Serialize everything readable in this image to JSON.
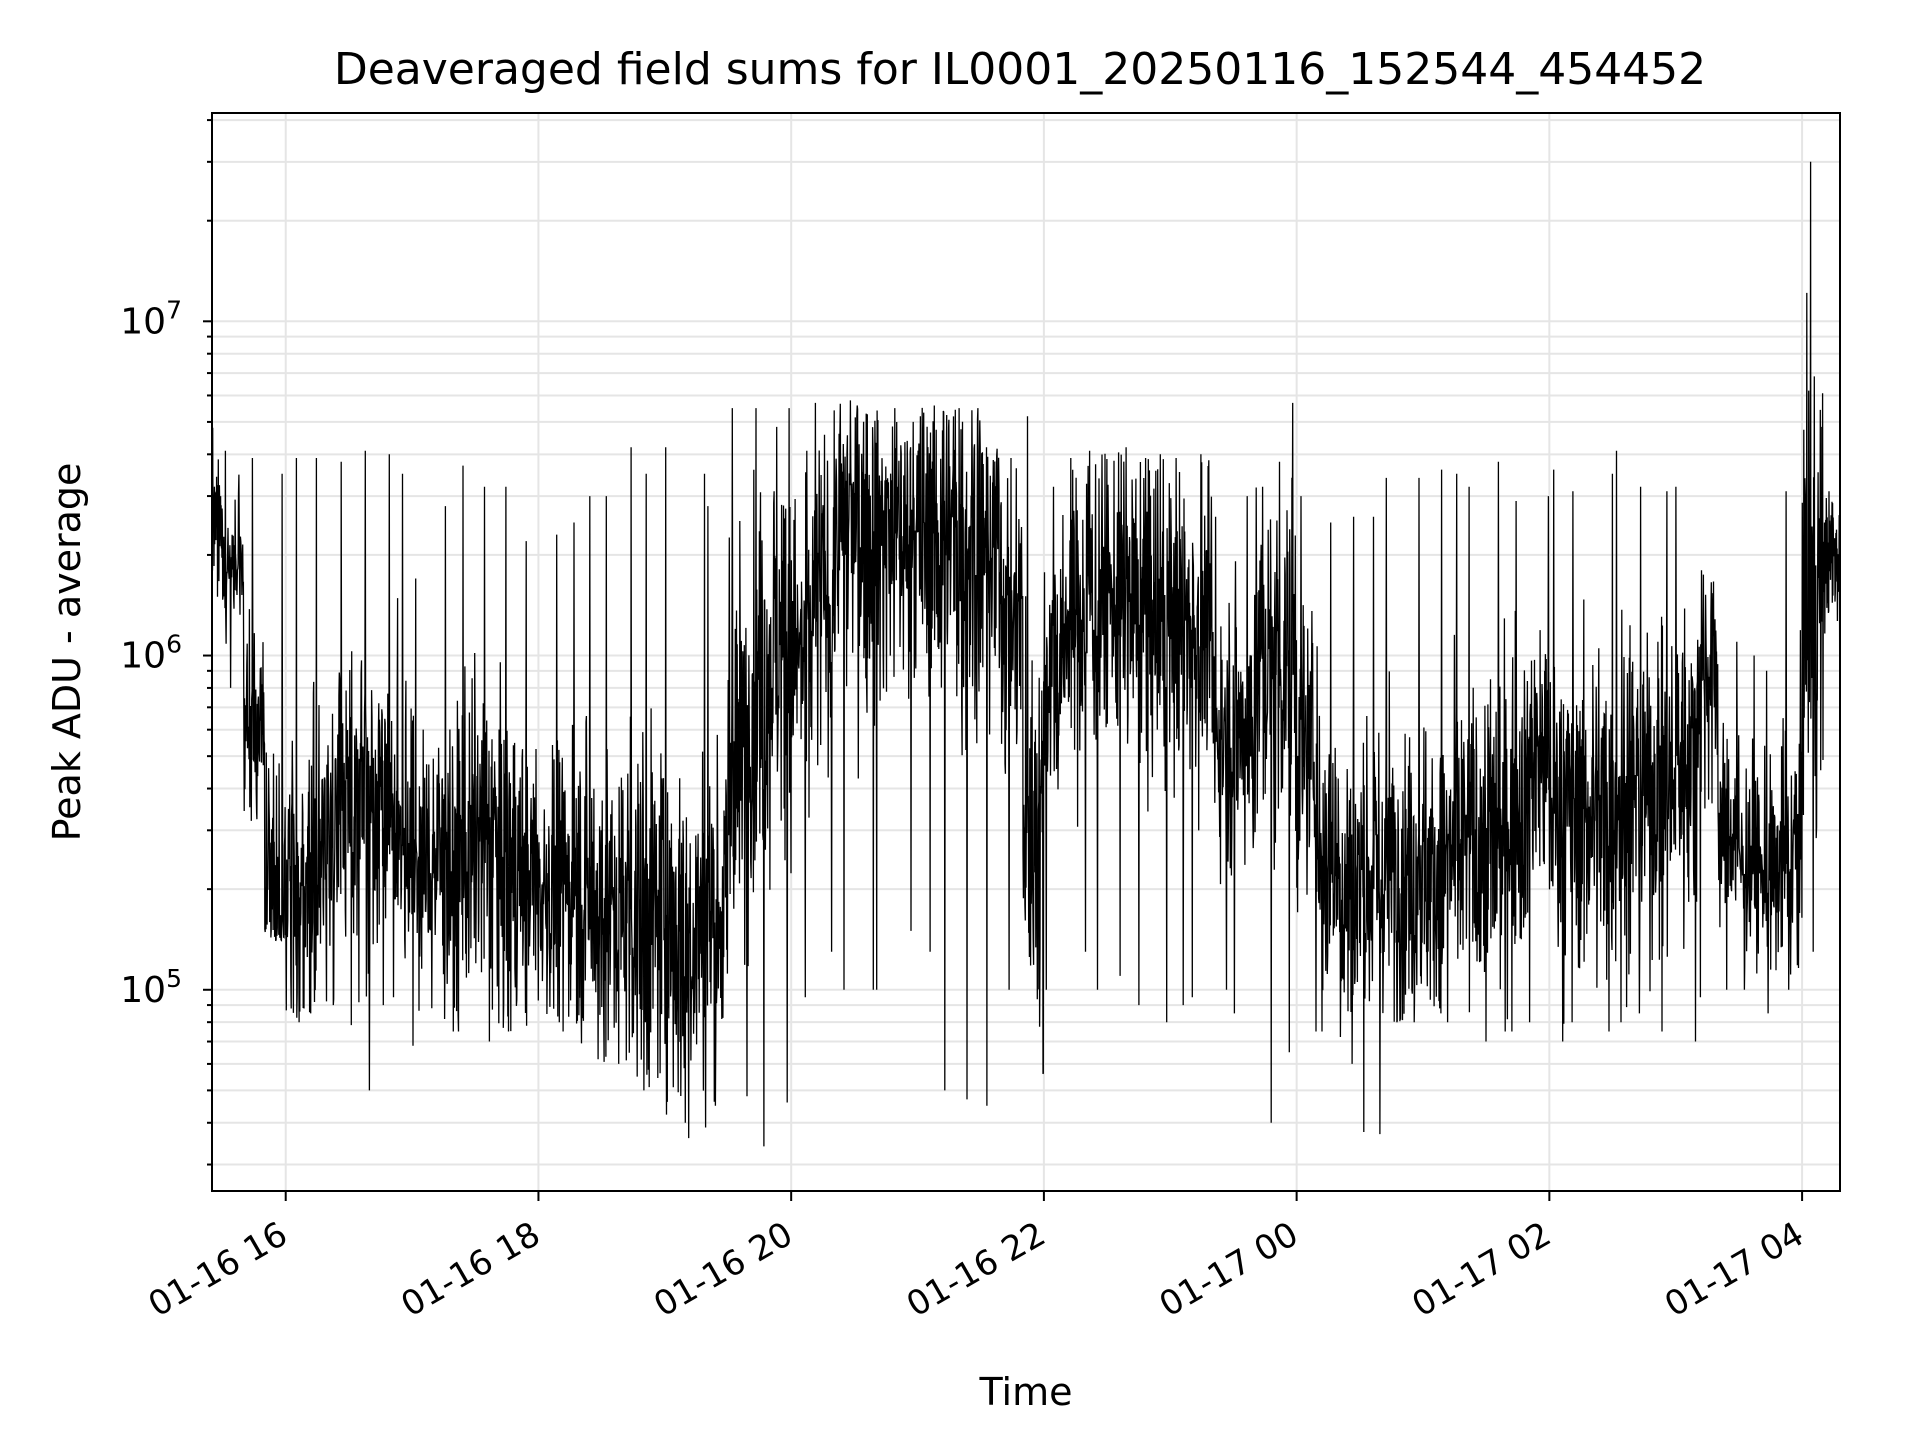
{
  "chart_data": {
    "type": "line",
    "title": "Deaveraged field sums for IL0001_20250116_152544_454452",
    "xlabel": "Time",
    "ylabel": "Peak ADU - average",
    "yscale": "log",
    "xlim": [
      "2025-01-16T15:25",
      "2025-01-17T04:18"
    ],
    "ylim": [
      25000,
      42000000
    ],
    "grid": true,
    "line_color": "#000000",
    "x_ticks": [
      {
        "t": "2025-01-16T16:00",
        "label": "01-16 16"
      },
      {
        "t": "2025-01-16T18:00",
        "label": "01-16 18"
      },
      {
        "t": "2025-01-16T20:00",
        "label": "01-16 20"
      },
      {
        "t": "2025-01-16T22:00",
        "label": "01-16 22"
      },
      {
        "t": "2025-01-17T00:00",
        "label": "01-17 00"
      },
      {
        "t": "2025-01-17T02:00",
        "label": "01-17 02"
      },
      {
        "t": "2025-01-17T04:00",
        "label": "01-17 04"
      }
    ],
    "y_ticks": [
      {
        "value": 100000,
        "base": "10",
        "exp": "5"
      },
      {
        "value": 1000000,
        "base": "10",
        "exp": "6"
      },
      {
        "value": 10000000,
        "base": "10",
        "exp": "7"
      }
    ],
    "series": [
      {
        "x": [
          "2025-01-16T15:25",
          "2025-01-16T15:35",
          "2025-01-16T15:45",
          "2025-01-16T15:55",
          "2025-01-16T16:05",
          "2025-01-16T16:15",
          "2025-01-16T16:25",
          "2025-01-16T16:35",
          "2025-01-16T16:45",
          "2025-01-16T16:55",
          "2025-01-16T17:05",
          "2025-01-16T17:15",
          "2025-01-16T17:25",
          "2025-01-16T17:35",
          "2025-01-16T17:45",
          "2025-01-16T17:55",
          "2025-01-16T18:05",
          "2025-01-16T18:15",
          "2025-01-16T18:25",
          "2025-01-16T18:35",
          "2025-01-16T18:45",
          "2025-01-16T18:55",
          "2025-01-16T19:05",
          "2025-01-16T19:15",
          "2025-01-16T19:25",
          "2025-01-16T19:35",
          "2025-01-16T19:45",
          "2025-01-16T19:55",
          "2025-01-16T20:05",
          "2025-01-16T20:15",
          "2025-01-16T20:25",
          "2025-01-16T20:35",
          "2025-01-16T20:45",
          "2025-01-16T20:55",
          "2025-01-16T21:05",
          "2025-01-16T21:15",
          "2025-01-16T21:25",
          "2025-01-16T21:35",
          "2025-01-16T21:45",
          "2025-01-16T21:55",
          "2025-01-16T22:05",
          "2025-01-16T22:15",
          "2025-01-16T22:25",
          "2025-01-16T22:35",
          "2025-01-16T22:45",
          "2025-01-16T22:55",
          "2025-01-16T23:05",
          "2025-01-16T23:15",
          "2025-01-16T23:25",
          "2025-01-16T23:35",
          "2025-01-16T23:45",
          "2025-01-16T23:55",
          "2025-01-17T00:05",
          "2025-01-17T00:15",
          "2025-01-17T00:25",
          "2025-01-17T00:35",
          "2025-01-17T00:45",
          "2025-01-17T00:55",
          "2025-01-17T01:05",
          "2025-01-17T01:15",
          "2025-01-17T01:25",
          "2025-01-17T01:35",
          "2025-01-17T01:45",
          "2025-01-17T01:55",
          "2025-01-17T02:05",
          "2025-01-17T02:15",
          "2025-01-17T02:25",
          "2025-01-17T02:35",
          "2025-01-17T02:45",
          "2025-01-17T02:55",
          "2025-01-17T03:05",
          "2025-01-17T03:15",
          "2025-01-17T03:25",
          "2025-01-17T03:35",
          "2025-01-17T03:45",
          "2025-01-17T03:55",
          "2025-01-17T04:05",
          "2025-01-17T04:15"
        ],
        "median": [
          2500000,
          1800000,
          600000,
          200000,
          190000,
          230000,
          350000,
          380000,
          400000,
          300000,
          230000,
          240000,
          260000,
          280000,
          230000,
          220000,
          200000,
          210000,
          190000,
          170000,
          180000,
          170000,
          150000,
          160000,
          170000,
          500000,
          900000,
          1100000,
          1000000,
          1500000,
          2300000,
          2400000,
          2300000,
          2200000,
          2200000,
          2300000,
          2200000,
          2100000,
          1300000,
          300000,
          900000,
          1300000,
          1500000,
          1500000,
          1400000,
          1300000,
          1300000,
          1200000,
          600000,
          600000,
          900000,
          1000000,
          500000,
          250000,
          200000,
          220000,
          230000,
          230000,
          220000,
          250000,
          260000,
          280000,
          350000,
          500000,
          350000,
          330000,
          350000,
          400000,
          380000,
          400000,
          500000,
          900000,
          300000,
          240000,
          220000,
          250000,
          1500000,
          2000000
        ],
        "max": [
          4800000,
          4100000,
          3900000,
          3500000,
          3900000,
          3900000,
          3800000,
          4100000,
          4000000,
          3500000,
          1700000,
          2800000,
          3700000,
          3200000,
          3200000,
          2200000,
          2300000,
          2500000,
          3000000,
          3000000,
          4200000,
          3500000,
          4200000,
          3500000,
          2800000,
          5500000,
          5500000,
          5500000,
          4100000,
          5700000,
          5800000,
          5600000,
          5500000,
          5000000,
          5600000,
          5500000,
          5500000,
          4200000,
          3900000,
          5200000,
          3200000,
          3900000,
          4100000,
          4200000,
          3900000,
          4000000,
          3900000,
          4000000,
          2600000,
          3000000,
          3200000,
          5700000,
          3000000,
          2500000,
          2600000,
          2600000,
          3400000,
          3400000,
          3600000,
          3500000,
          3200000,
          3800000,
          2900000,
          3000000,
          3600000,
          3100000,
          3500000,
          4100000,
          3200000,
          3100000,
          3200000,
          1800000,
          1100000,
          1000000,
          900000,
          3100000,
          30000000,
          3100000
        ],
        "min": [
          1500000,
          800000,
          320000,
          140000,
          80000,
          85000,
          90000,
          50000,
          90000,
          95000,
          68000,
          75000,
          75000,
          70000,
          75000,
          78000,
          80000,
          75000,
          62000,
          60000,
          55000,
          50000,
          40000,
          36000,
          45000,
          48000,
          34000,
          46000,
          95000,
          130000,
          100000,
          100000,
          100000,
          150000,
          130000,
          50000,
          47000,
          45000,
          100000,
          56000,
          100000,
          130000,
          100000,
          110000,
          90000,
          80000,
          90000,
          95000,
          100000,
          85000,
          40000,
          65000,
          75000,
          75000,
          60000,
          37000,
          80000,
          80000,
          85000,
          80000,
          70000,
          75000,
          75000,
          80000,
          70000,
          80000,
          75000,
          80000,
          85000,
          75000,
          70000,
          95000,
          100000,
          100000,
          85000,
          100000,
          130000,
          600000
        ]
      }
    ]
  }
}
